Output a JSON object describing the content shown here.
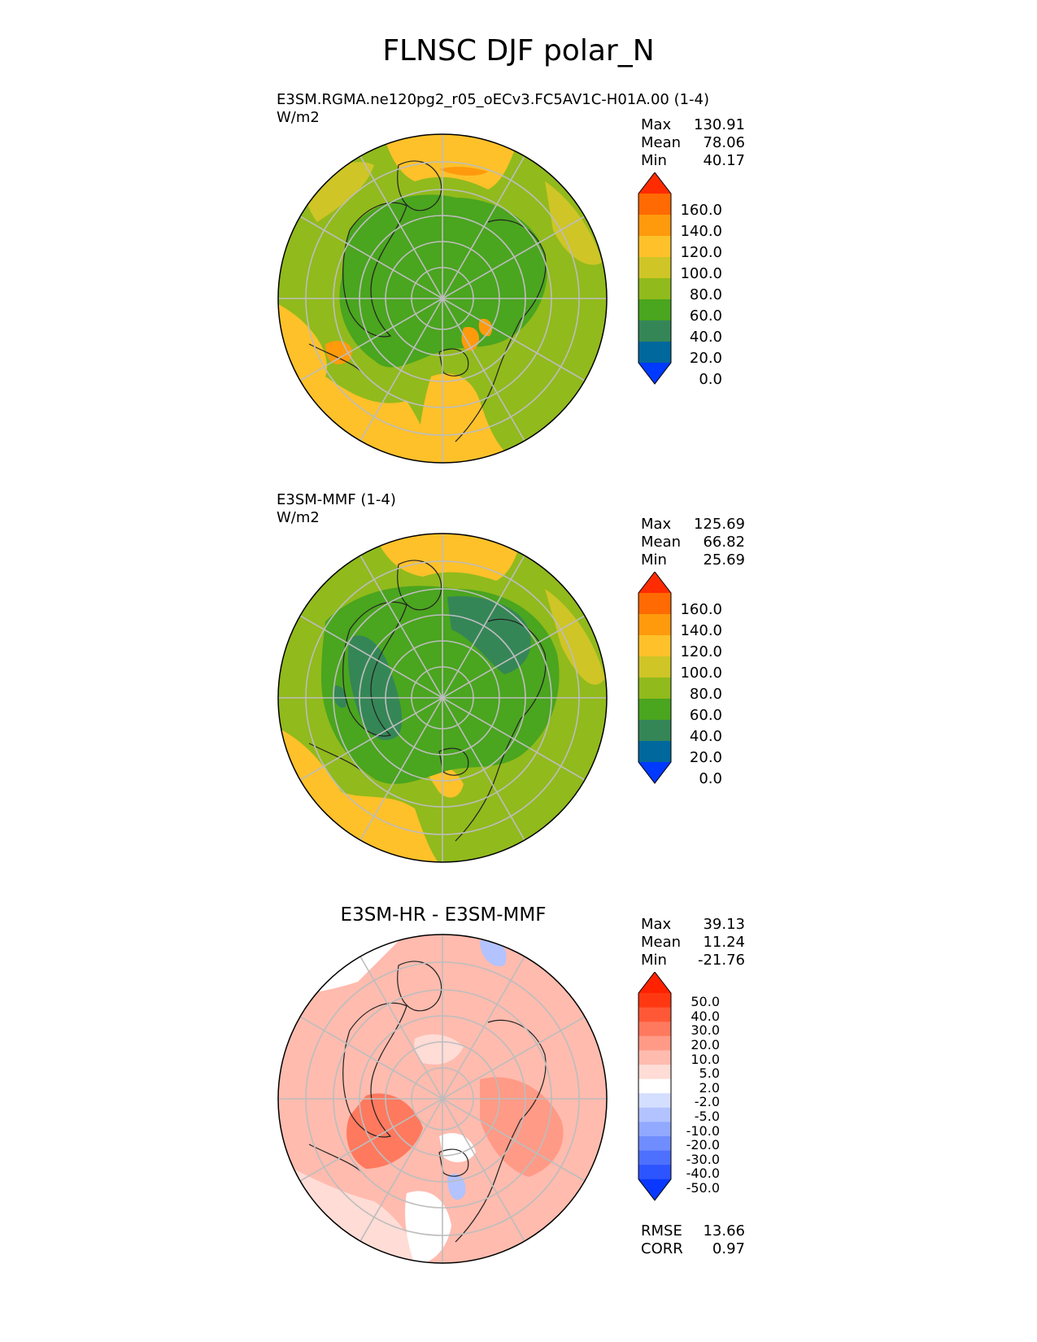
{
  "figure": {
    "title": "FLNSC DJF polar_N"
  },
  "panels": [
    {
      "name": "model",
      "title_line1": "E3SM.RGMA.ne120pg2_r05_oECv3.FC5AV1C-H01A.00 (1-4)",
      "title_line2": "W/m2",
      "stats": {
        "max_label": "Max",
        "max": "130.91",
        "mean_label": "Mean",
        "mean": "78.06",
        "min_label": "Min",
        "min": "40.17"
      },
      "colorbar": {
        "levels": [
          "0.0",
          "20.0",
          "40.0",
          "60.0",
          "80.0",
          "100.0",
          "120.0",
          "140.0",
          "160.0"
        ],
        "colors": [
          "#0039ff",
          "#00689c",
          "#358657",
          "#4aa51f",
          "#91ba1c",
          "#cfc526",
          "#fec12a",
          "#ff9a0c",
          "#ff6a02",
          "#ff2c02"
        ]
      }
    },
    {
      "name": "reference",
      "title_line1": "E3SM-MMF (1-4)",
      "title_line2": "W/m2",
      "stats": {
        "max_label": "Max",
        "max": "125.69",
        "mean_label": "Mean",
        "mean": "66.82",
        "min_label": "Min",
        "min": "25.69"
      },
      "colorbar": {
        "levels": [
          "0.0",
          "20.0",
          "40.0",
          "60.0",
          "80.0",
          "100.0",
          "120.0",
          "140.0",
          "160.0"
        ],
        "colors": [
          "#0039ff",
          "#00689c",
          "#358657",
          "#4aa51f",
          "#91ba1c",
          "#cfc526",
          "#fec12a",
          "#ff9a0c",
          "#ff6a02",
          "#ff2c02"
        ]
      }
    },
    {
      "name": "difference",
      "title": "E3SM-HR - E3SM-MMF",
      "stats": {
        "max_label": "Max",
        "max": "39.13",
        "mean_label": "Mean",
        "mean": "11.24",
        "min_label": "Min",
        "min": "-21.76",
        "rmse_label": "RMSE",
        "rmse": "13.66",
        "corr_label": "CORR",
        "corr": "0.97"
      },
      "colorbar": {
        "levels": [
          "-50.0",
          "-40.0",
          "-30.0",
          "-20.0",
          "-10.0",
          "-5.0",
          "-2.0",
          "2.0",
          "5.0",
          "10.0",
          "20.0",
          "30.0",
          "40.0",
          "50.0"
        ],
        "colors": [
          "#0a38ff",
          "#2c54ff",
          "#4d70ff",
          "#708dff",
          "#91a9ff",
          "#b2c3ff",
          "#d4deff",
          "#ffffff",
          "#ffdcd6",
          "#ffbbae",
          "#ff9a86",
          "#ff795e",
          "#ff5837",
          "#ff3812",
          "#ff2200"
        ]
      }
    }
  ]
}
